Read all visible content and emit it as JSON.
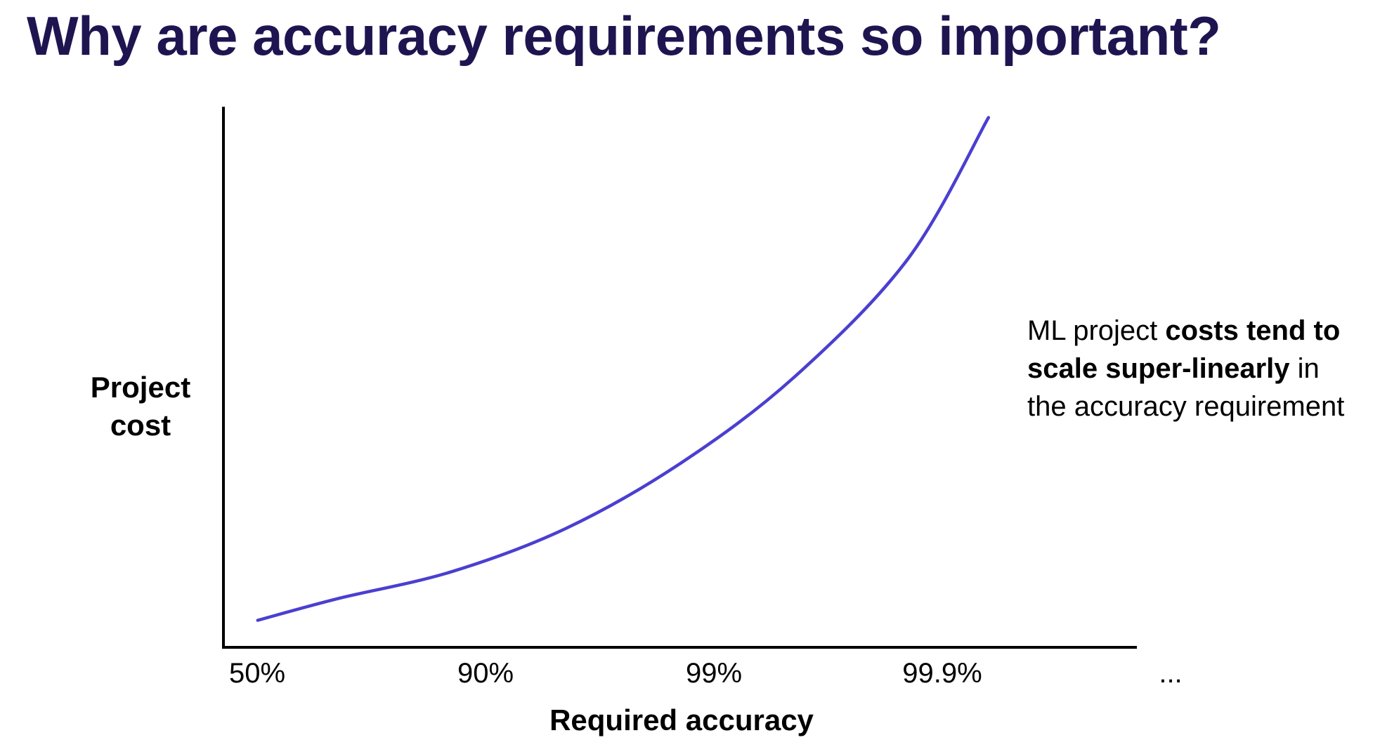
{
  "slide": {
    "title": "Why are accuracy requirements so important?"
  },
  "annotation": {
    "part1": "ML project ",
    "bold": "costs tend to scale super-linearly",
    "part2": " in the accuracy requirement"
  },
  "colors": {
    "title": "#1e1550",
    "line": "#4b3fd0",
    "axis": "#000000"
  },
  "chart_data": {
    "type": "line",
    "title": "",
    "xlabel": "Required accuracy",
    "ylabel_lines": [
      "Project",
      "cost"
    ],
    "categories": [
      "50%",
      "90%",
      "99%",
      "99.9%",
      "..."
    ],
    "y_ticks": false,
    "grid": false,
    "series": [
      {
        "x": [
          0.15,
          0.5,
          1.0,
          1.5,
          2.0,
          2.5,
          3.0,
          3.35
        ],
        "y": [
          0.05,
          0.09,
          0.14,
          0.22,
          0.34,
          0.5,
          0.72,
          0.98
        ]
      }
    ],
    "xlim": [
      0,
      4.0
    ],
    "ylim": [
      0,
      1.0
    ]
  }
}
